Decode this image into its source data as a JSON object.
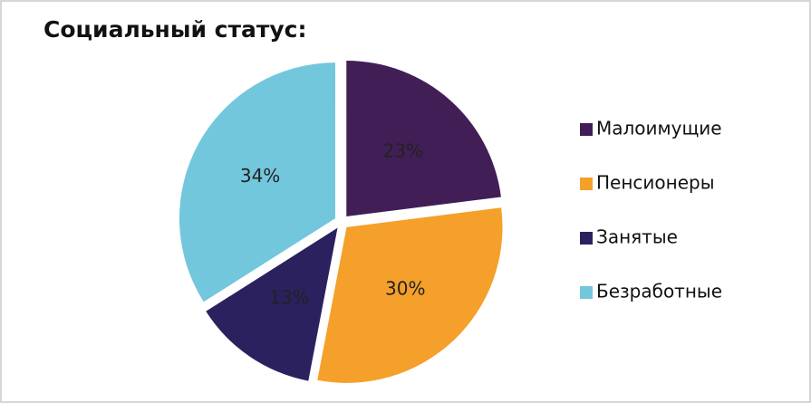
{
  "chart_data": {
    "type": "pie",
    "title": "Социальный статус:",
    "categories": [
      "Малоимущие",
      "Пенсионеры",
      "Занятые",
      "Безработные"
    ],
    "values": [
      23,
      30,
      13,
      34
    ],
    "value_labels": [
      "23%",
      "30%",
      "13%",
      "34%"
    ],
    "colors": [
      "#421e57",
      "#f5a02a",
      "#2b215f",
      "#72c7dc"
    ],
    "legend": "right"
  }
}
